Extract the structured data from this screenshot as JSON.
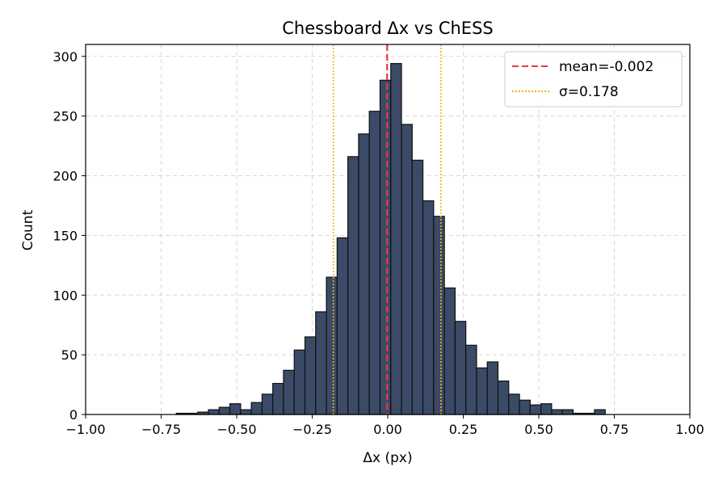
{
  "chart_data": {
    "type": "bar",
    "title": "Chessboard Δx vs ChESS",
    "xlabel": "Δx (px)",
    "ylabel": "Count",
    "xlim": [
      -1.0,
      1.0
    ],
    "ylim": [
      0,
      310
    ],
    "grid": true,
    "legend_position": "top-right",
    "bin_width": 0.0355,
    "bin_start": -0.7,
    "counts": [
      1,
      1,
      2,
      4,
      6,
      9,
      4,
      10,
      17,
      26,
      37,
      54,
      65,
      86,
      115,
      148,
      216,
      235,
      254,
      280,
      294,
      243,
      213,
      179,
      166,
      106,
      78,
      58,
      39,
      44,
      28,
      17,
      12,
      8,
      9,
      4,
      4,
      1,
      1,
      4
    ],
    "mean": -0.002,
    "sigma": 0.178,
    "x_ticks": [
      "−1.00",
      "−0.75",
      "−0.50",
      "−0.25",
      "0.00",
      "0.25",
      "0.50",
      "0.75",
      "1.00"
    ],
    "x_tick_values": [
      -1.0,
      -0.75,
      -0.5,
      -0.25,
      0.0,
      0.25,
      0.5,
      0.75,
      1.0
    ],
    "y_ticks": [
      "0",
      "50",
      "100",
      "150",
      "200",
      "250",
      "300"
    ],
    "y_tick_values": [
      0,
      50,
      100,
      150,
      200,
      250,
      300
    ],
    "legend": [
      {
        "label": "mean=-0.002",
        "style": "dashed",
        "color": "#e63946"
      },
      {
        "label": "σ=0.178",
        "style": "dotted",
        "color": "#f4b400"
      }
    ],
    "colors": {
      "bar_fill": "#3b4a66",
      "bar_edge": "#111111",
      "mean_line": "#e63946",
      "sigma_line": "#f4b400"
    }
  }
}
